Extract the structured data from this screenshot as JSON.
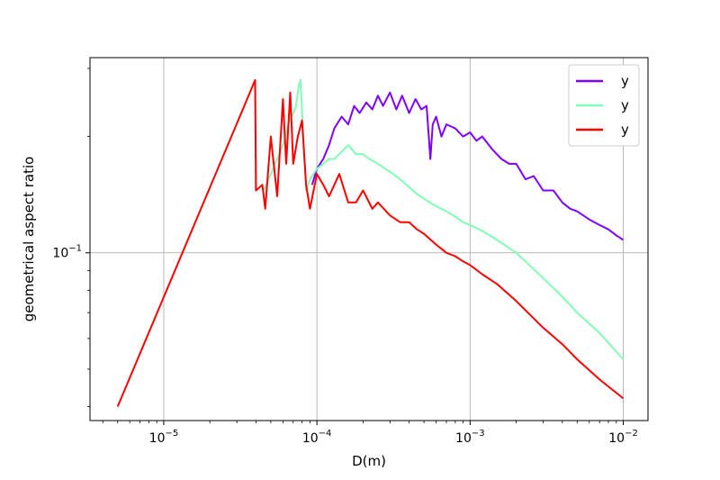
{
  "chart_data": {
    "type": "line",
    "title": "",
    "xlabel": "D(m)",
    "ylabel": "geometrical aspect ratio",
    "xscale": "log",
    "yscale": "log",
    "xlim": [
      3.3e-06,
      0.0145
    ],
    "ylim": [
      0.0368,
      0.32
    ],
    "grid": true,
    "legend_position": "top-right",
    "x_ticks": [
      {
        "value": 1e-05,
        "base": "10",
        "exp": "−5"
      },
      {
        "value": 0.0001,
        "base": "10",
        "exp": "−4"
      },
      {
        "value": 0.001,
        "base": "10",
        "exp": "−3"
      },
      {
        "value": 0.01,
        "base": "10",
        "exp": "−2"
      }
    ],
    "y_ticks": [
      {
        "value": 0.1,
        "base": "10",
        "exp": "−1"
      }
    ],
    "series": [
      {
        "name": "y",
        "color": "#8000ff",
        "x": [
          9.3e-05,
          0.0001,
          0.00011,
          0.00012,
          0.00013,
          0.000145,
          0.00016,
          0.000175,
          0.00019,
          0.00021,
          0.00023,
          0.00025,
          0.00027,
          0.0003,
          0.00033,
          0.00036,
          0.0004,
          0.00044,
          0.00048,
          0.00052,
          0.00055,
          0.00057,
          0.0006,
          0.00065,
          0.0007,
          0.0008,
          0.0009,
          0.001,
          0.0011,
          0.0012,
          0.0014,
          0.0016,
          0.0018,
          0.002,
          0.0023,
          0.0026,
          0.003,
          0.0035,
          0.004,
          0.0045,
          0.005,
          0.006,
          0.007,
          0.008,
          0.009,
          0.01
        ],
        "y": [
          0.15,
          0.165,
          0.175,
          0.19,
          0.21,
          0.225,
          0.215,
          0.24,
          0.23,
          0.245,
          0.235,
          0.255,
          0.24,
          0.26,
          0.235,
          0.255,
          0.23,
          0.25,
          0.235,
          0.24,
          0.175,
          0.215,
          0.225,
          0.2,
          0.215,
          0.21,
          0.2,
          0.205,
          0.195,
          0.2,
          0.185,
          0.175,
          0.17,
          0.17,
          0.155,
          0.158,
          0.145,
          0.145,
          0.135,
          0.13,
          0.128,
          0.122,
          0.118,
          0.115,
          0.111,
          0.108
        ]
      },
      {
        "name": "y",
        "color": "#80ffb4",
        "x": [
          4.5e-05,
          5e-05,
          5.5e-05,
          6e-05,
          6.5e-05,
          7e-05,
          7.3e-05,
          7.6e-05,
          7.8e-05,
          8.5e-05,
          9e-05,
          0.0001,
          0.00011,
          0.00012,
          0.00013,
          0.00014,
          0.00015,
          0.00016,
          0.00018,
          0.0002,
          0.00022,
          0.00025,
          0.00028,
          0.0003,
          0.00035,
          0.0004,
          0.00045,
          0.0005,
          0.0006,
          0.0007,
          0.0008,
          0.0009,
          0.001,
          0.0012,
          0.0015,
          0.002,
          0.003,
          0.004,
          0.005,
          0.007,
          0.01
        ],
        "y": [
          0.145,
          0.16,
          0.175,
          0.19,
          0.215,
          0.23,
          0.24,
          0.27,
          0.28,
          0.145,
          0.155,
          0.165,
          0.17,
          0.175,
          0.175,
          0.18,
          0.185,
          0.19,
          0.18,
          0.18,
          0.175,
          0.17,
          0.165,
          0.162,
          0.155,
          0.148,
          0.142,
          0.138,
          0.132,
          0.128,
          0.124,
          0.12,
          0.118,
          0.114,
          0.108,
          0.1,
          0.086,
          0.077,
          0.07,
          0.062,
          0.053
        ]
      },
      {
        "name": "y",
        "color": "#ff0000",
        "x": [
          5e-06,
          3.95e-05,
          4e-05,
          4.4e-05,
          4.6e-05,
          5e-05,
          5.5e-05,
          6e-05,
          6.3e-05,
          6.7e-05,
          7e-05,
          7.5e-05,
          8e-05,
          8.5e-05,
          9e-05,
          0.0001,
          0.00011,
          0.00012,
          0.00014,
          0.00016,
          0.00018,
          0.0002,
          0.00023,
          0.00025,
          0.0003,
          0.00035,
          0.0004,
          0.00045,
          0.0005,
          0.0006,
          0.0007,
          0.0008,
          0.0009,
          0.001,
          0.0012,
          0.0015,
          0.002,
          0.003,
          0.004,
          0.005,
          0.007,
          0.01
        ],
        "y": [
          0.04,
          0.28,
          0.145,
          0.15,
          0.13,
          0.2,
          0.14,
          0.25,
          0.17,
          0.26,
          0.17,
          0.2,
          0.22,
          0.15,
          0.13,
          0.16,
          0.15,
          0.14,
          0.16,
          0.135,
          0.135,
          0.145,
          0.13,
          0.135,
          0.125,
          0.12,
          0.12,
          0.115,
          0.112,
          0.105,
          0.1,
          0.098,
          0.095,
          0.093,
          0.088,
          0.083,
          0.075,
          0.064,
          0.058,
          0.053,
          0.047,
          0.042
        ]
      }
    ]
  }
}
